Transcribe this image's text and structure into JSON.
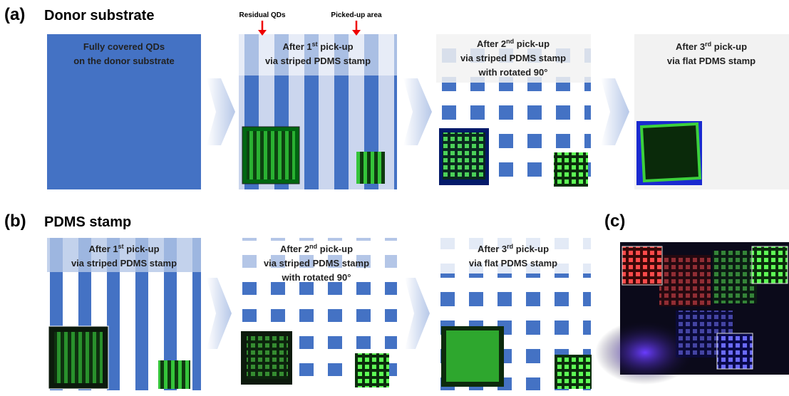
{
  "panel_a": {
    "label": "(a)",
    "title": "Donor substrate",
    "annotations": [
      "Residual QDs",
      "Picked-up area"
    ],
    "steps": [
      {
        "lines": [
          "Fully covered QDs",
          "on the donor substrate"
        ]
      },
      {
        "heading": {
          "pre": "After 1",
          "sup": "st",
          "post": " pick-up"
        },
        "lines": [
          "via striped PDMS stamp"
        ]
      },
      {
        "heading": {
          "pre": "After 2",
          "sup": "nd",
          "post": " pick-up"
        },
        "lines": [
          "via striped PDMS stamp",
          "with rotated 90°"
        ]
      },
      {
        "heading": {
          "pre": "After 3",
          "sup": "rd",
          "post": " pick-up"
        },
        "lines": [
          "via flat PDMS stamp"
        ]
      }
    ]
  },
  "panel_b": {
    "label": "(b)",
    "title": "PDMS stamp",
    "steps": [
      {
        "heading": {
          "pre": "After 1",
          "sup": "st",
          "post": " pick-up"
        },
        "lines": [
          "via striped PDMS stamp"
        ]
      },
      {
        "heading": {
          "pre": "After 2",
          "sup": "nd",
          "post": " pick-up"
        },
        "lines": [
          "via striped PDMS stamp",
          "with rotated 90°"
        ]
      },
      {
        "heading": {
          "pre": "After 3",
          "sup": "rd",
          "post": " pick-up"
        },
        "lines": [
          "via flat PDMS stamp"
        ]
      }
    ]
  },
  "panel_c": {
    "label": "(c)"
  }
}
